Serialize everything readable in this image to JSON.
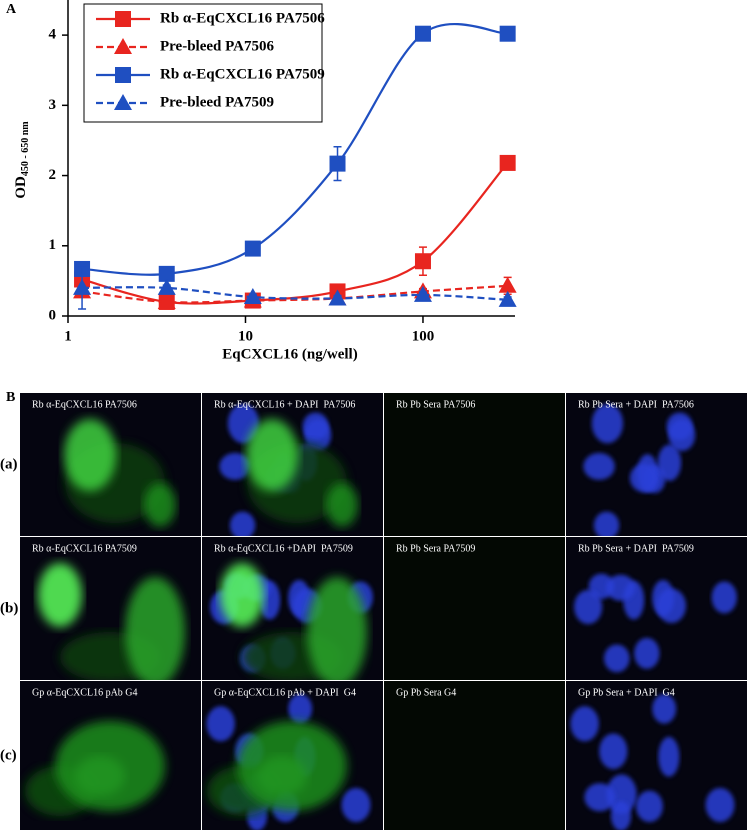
{
  "chart_data": {
    "type": "line",
    "panel_label": "A",
    "x_label": "EqCXCL16 (ng/well)",
    "y_label": "OD",
    "y_label_sub": "450 - 650 nm",
    "x": [
      1.2,
      3.6,
      11,
      33,
      100,
      300
    ],
    "xlim": [
      1,
      330
    ],
    "xticks": [
      1,
      10,
      100
    ],
    "x_log": true,
    "ylim": [
      0,
      4.5
    ],
    "yticks": [
      0,
      1,
      2,
      3,
      4
    ],
    "legend": "upper left",
    "grid": false,
    "smooth": true,
    "series": [
      {
        "name": "Rb α-EqCXCL16 PA7506",
        "color": "#e8251f",
        "marker": "square",
        "dashed": false,
        "values": [
          0.52,
          0.2,
          0.22,
          0.35,
          0.78,
          2.18
        ],
        "errors": [
          0.05,
          0.04,
          0.03,
          0.05,
          0.2,
          0.05
        ]
      },
      {
        "name": "Pre-bleed PA7506",
        "color": "#e8251f",
        "marker": "triangle",
        "dashed": true,
        "values": [
          0.35,
          0.2,
          0.22,
          0.25,
          0.35,
          0.43
        ],
        "errors": [
          0.05,
          0.03,
          0.03,
          0.03,
          0.04,
          0.12
        ]
      },
      {
        "name": "Rb α-EqCXCL16 PA7509",
        "color": "#1f4fc1",
        "marker": "square",
        "dashed": false,
        "values": [
          0.67,
          0.6,
          0.96,
          2.17,
          4.02,
          4.02
        ],
        "errors": [
          0.05,
          0.04,
          0.05,
          0.24,
          0.05,
          0.05
        ]
      },
      {
        "name": "Pre-bleed PA7509",
        "color": "#1f4fc1",
        "marker": "triangle",
        "dashed": true,
        "values": [
          0.4,
          0.4,
          0.27,
          0.25,
          0.3,
          0.23
        ],
        "errors": [
          0.3,
          0.04,
          0.04,
          0.04,
          0.04,
          0.04
        ]
      }
    ]
  },
  "panel_b": {
    "label": "B",
    "rows": [
      {
        "label": "(a)",
        "captions": [
          "Rb α-EqCXCL16 PA7506",
          "Rb α-EqCXCL16 + DAPI  PA7506",
          "Rb Pb Sera PA7506",
          "Rb Pb Sera + DAPI  PA7506"
        ]
      },
      {
        "label": "(b)",
        "captions": [
          "Rb α-EqCXCL16 PA7509",
          "Rb α-EqCXCL16 +DAPI  PA7509",
          "Rb Pb Sera PA7509",
          "Rb Pb Sera + DAPI  PA7509"
        ]
      },
      {
        "label": "(c)",
        "captions": [
          "Gp α-EqCXCL16 pAb G4",
          "Gp α-EqCXCL16 pAb + DAPI  G4",
          "Gp Pb Sera G4",
          "Gp Pb Sera + DAPI  G4"
        ]
      }
    ]
  }
}
